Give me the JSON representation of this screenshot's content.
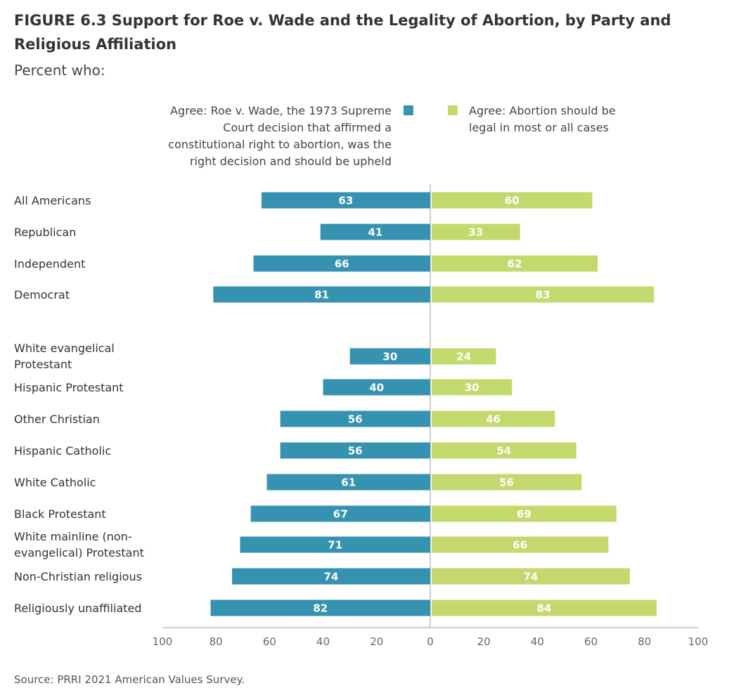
{
  "figure": {
    "title": "FIGURE 6.3  Support for Roe v. Wade and the Legality of Abortion, by Party and Religious Affiliation",
    "subtitle": "Percent who:",
    "source": "Source: PRRI 2021 American Values Survey."
  },
  "colors": {
    "roe": "#3592b0",
    "legal": "#c3d96d",
    "axis": "#cccccc"
  },
  "chart_data": {
    "type": "bar",
    "orientation": "horizontal-diverging",
    "title": "FIGURE 6.3  Support for Roe v. Wade and the Legality of Abortion, by Party and Religious Affiliation",
    "subtitle": "Percent who:",
    "categories": [
      "All Americans",
      "Republican",
      "Independent",
      "Democrat",
      "White evangelical Protestant",
      "Hispanic Protestant",
      "Other Christian",
      "Hispanic Catholic",
      "White Catholic",
      "Black Protestant",
      "White mainline (non-evangelical) Protestant",
      "Non-Christian religious",
      "Religiously unaffiliated"
    ],
    "category_lines": [
      [
        "All Americans"
      ],
      [
        "Republican"
      ],
      [
        "Independent"
      ],
      [
        "Democrat"
      ],
      [
        "White evangelical",
        "Protestant"
      ],
      [
        "Hispanic Protestant"
      ],
      [
        "Other Christian"
      ],
      [
        "Hispanic Catholic"
      ],
      [
        "White Catholic"
      ],
      [
        "Black Protestant"
      ],
      [
        "White mainline (non-",
        "evangelical) Protestant"
      ],
      [
        "Non-Christian religious"
      ],
      [
        "Religiously unaffiliated"
      ]
    ],
    "groups": [
      [
        0,
        1,
        2,
        3
      ],
      [
        4,
        5,
        6,
        7,
        8,
        9,
        10,
        11,
        12
      ]
    ],
    "series": [
      {
        "name": "Agree: Roe v. Wade, the 1973 Supreme Court decision that affirmed a constitutional right to abortion, was the right decision and should be upheld",
        "legend_lines": [
          "Agree: Roe v. Wade, the 1973 Supreme",
          "Court decision that affirmed a",
          "constitutional right to abortion, was the",
          "right decision and should be upheld"
        ],
        "side": "left",
        "values": [
          63,
          41,
          66,
          81,
          30,
          40,
          56,
          56,
          61,
          67,
          71,
          74,
          82
        ]
      },
      {
        "name": "Agree: Abortion should be legal in most or all cases",
        "legend_lines": [
          "Agree: Abortion should be",
          "legal in most or all cases"
        ],
        "side": "right",
        "values": [
          60,
          33,
          62,
          83,
          24,
          30,
          46,
          54,
          56,
          69,
          66,
          74,
          84
        ]
      }
    ],
    "x_ticks": [
      "100",
      "80",
      "60",
      "40",
      "20",
      "0",
      "20",
      "40",
      "60",
      "80",
      "100"
    ],
    "xlim": [
      -100,
      100
    ],
    "grid": false,
    "legend_position": "top"
  }
}
